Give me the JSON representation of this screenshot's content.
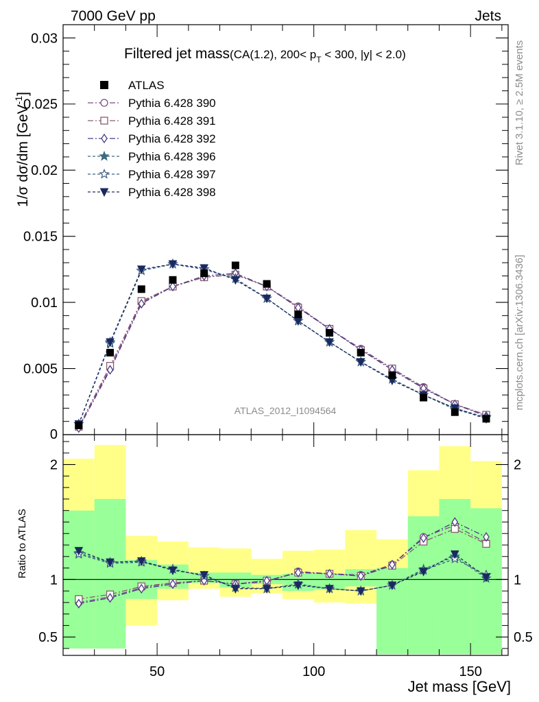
{
  "texts": {
    "header_left": "7000 GeV pp",
    "header_right": "Jets",
    "title_main": "Filtered jet mass",
    "title_sub_a": "(CA(1.2), 200< p",
    "title_sub_sub": "T",
    "title_sub_b": " < 300, |y| < 2.0)",
    "ylabel_top": "1/σ dσ/dm [GeV",
    "ylabel_top_sup": "-1",
    "ylabel_top_close": "]",
    "ylabel_bottom": "Ratio to ATLAS",
    "xlabel": "Jet mass [GeV]",
    "watermark": "ATLAS_2012_I1094564",
    "side_rivet": "Rivet 3.1.10, ≥ 2.5M events",
    "side_mcplots": "mcplots.cern.ch [arXiv:1306.3436]"
  },
  "colors": {
    "data": "#000000",
    "band_inner": "#99ff99",
    "band_outer": "#ffff88"
  },
  "chart_data": [
    {
      "type": "line",
      "panel": "main",
      "x": [
        25,
        35,
        45,
        55,
        65,
        75,
        85,
        95,
        105,
        115,
        125,
        135,
        145,
        155
      ],
      "xlim": [
        20,
        162
      ],
      "ylim": [
        0,
        0.031
      ],
      "xticks": [
        50,
        100,
        150
      ],
      "yticks": [
        0.005,
        0.01,
        0.015,
        0.02,
        0.025,
        0.03
      ],
      "ytick_labels": [
        "0.005",
        "0.01",
        "0.015",
        "0.02",
        "0.025",
        "0.03"
      ],
      "ytick_zero_label": "0",
      "data": {
        "name": "ATLAS",
        "values": [
          0.0007,
          0.0062,
          0.011,
          0.0117,
          0.0122,
          0.0128,
          0.0114,
          0.0091,
          0.0077,
          0.0062,
          0.0045,
          0.0028,
          0.0017,
          0.0012
        ]
      },
      "series": [
        {
          "name": "Pythia 6.428 390",
          "marker": "circle-open",
          "dash": "8,3,2,3",
          "color": "#7b4a8c",
          "values": [
            0.0006,
            0.005,
            0.01,
            0.0112,
            0.0119,
            0.0121,
            0.0112,
            0.0097,
            0.008,
            0.0065,
            0.005,
            0.0036,
            0.0023,
            0.0015
          ]
        },
        {
          "name": "Pythia 6.428 391",
          "marker": "square-open",
          "dash": "8,3,2,3",
          "color": "#8a5a6e",
          "values": [
            0.0006,
            0.0052,
            0.0101,
            0.0112,
            0.0119,
            0.0121,
            0.0112,
            0.0096,
            0.008,
            0.0064,
            0.005,
            0.0035,
            0.0023,
            0.0015
          ]
        },
        {
          "name": "Pythia 6.428 392",
          "marker": "diamond-open",
          "dash": "8,3,2,3",
          "color": "#4b3a86",
          "values": [
            0.0005,
            0.0049,
            0.0099,
            0.0112,
            0.012,
            0.0122,
            0.0112,
            0.0096,
            0.008,
            0.0064,
            0.0049,
            0.0035,
            0.0023,
            0.0014
          ]
        },
        {
          "name": "Pythia 6.428 396",
          "marker": "star-filled",
          "dash": "4,3",
          "color": "#3a6a80",
          "values": [
            0.0008,
            0.007,
            0.0124,
            0.0129,
            0.0125,
            0.0118,
            0.0103,
            0.0086,
            0.007,
            0.0055,
            0.0042,
            0.003,
            0.0019,
            0.0013
          ]
        },
        {
          "name": "Pythia 6.428 397",
          "marker": "star-open",
          "dash": "4,3",
          "color": "#3a5a80",
          "values": [
            0.0008,
            0.0069,
            0.0124,
            0.0129,
            0.0125,
            0.0118,
            0.0103,
            0.0086,
            0.007,
            0.0055,
            0.0042,
            0.003,
            0.002,
            0.0013
          ]
        },
        {
          "name": "Pythia 6.428 398",
          "marker": "triangle-down-filled",
          "dash": "4,3",
          "color": "#1a2a60",
          "values": [
            0.0008,
            0.007,
            0.0125,
            0.0129,
            0.0126,
            0.0117,
            0.0103,
            0.0086,
            0.007,
            0.0055,
            0.0041,
            0.003,
            0.002,
            0.0012
          ]
        }
      ]
    },
    {
      "type": "line",
      "panel": "ratio",
      "x": [
        25,
        35,
        45,
        55,
        65,
        75,
        85,
        95,
        105,
        115,
        125,
        135,
        145,
        155
      ],
      "xlim": [
        20,
        162
      ],
      "ylim": [
        0.34,
        2.26
      ],
      "yticks": [
        0.5,
        1,
        2
      ],
      "ytick_labels": [
        "0.5",
        "1",
        "2"
      ],
      "reference": 1,
      "bins": [
        [
          20,
          30
        ],
        [
          30,
          40
        ],
        [
          40,
          50
        ],
        [
          50,
          60
        ],
        [
          60,
          70
        ],
        [
          70,
          80
        ],
        [
          80,
          90
        ],
        [
          90,
          100
        ],
        [
          100,
          110
        ],
        [
          110,
          120
        ],
        [
          120,
          130
        ],
        [
          130,
          140
        ],
        [
          140,
          150
        ],
        [
          150,
          160
        ]
      ],
      "band_inner": [
        [
          0.4,
          1.6
        ],
        [
          0.4,
          1.7
        ],
        [
          0.83,
          1.17
        ],
        [
          0.92,
          1.13
        ],
        [
          0.97,
          1.06
        ],
        [
          0.93,
          1.06
        ],
        [
          0.96,
          1.04
        ],
        [
          0.9,
          1.05
        ],
        [
          0.91,
          1.05
        ],
        [
          0.94,
          1.09
        ],
        [
          0.35,
          1.1
        ],
        [
          0.35,
          1.55
        ],
        [
          0.35,
          1.7
        ],
        [
          0.35,
          1.62
        ]
      ],
      "band_outer": [
        [
          0.4,
          2.05
        ],
        [
          0.58,
          2.17
        ],
        [
          0.6,
          1.38
        ],
        [
          0.82,
          1.33
        ],
        [
          0.92,
          1.28
        ],
        [
          0.85,
          1.27
        ],
        [
          0.88,
          1.18
        ],
        [
          0.83,
          1.25
        ],
        [
          0.8,
          1.26
        ],
        [
          0.79,
          1.43
        ],
        [
          0.72,
          1.35
        ],
        [
          0.71,
          1.95
        ],
        [
          0.56,
          2.16
        ],
        [
          0.35,
          2.03
        ]
      ],
      "series": [
        {
          "name": "Pythia 6.428 390",
          "values": [
            0.8,
            0.85,
            0.93,
            0.97,
            0.99,
            0.96,
            0.98,
            1.07,
            1.05,
            1.04,
            1.13,
            1.37,
            1.47,
            1.32
          ]
        },
        {
          "name": "Pythia 6.428 391",
          "values": [
            0.83,
            0.87,
            0.94,
            0.97,
            0.99,
            0.96,
            0.99,
            1.06,
            1.05,
            1.03,
            1.12,
            1.33,
            1.44,
            1.31
          ]
        },
        {
          "name": "Pythia 6.428 392",
          "values": [
            0.79,
            0.84,
            0.92,
            0.96,
            0.99,
            0.96,
            0.99,
            1.06,
            1.05,
            1.03,
            1.13,
            1.36,
            1.5,
            1.37
          ]
        },
        {
          "name": "Pythia 6.428 396",
          "values": [
            1.23,
            1.15,
            1.16,
            1.09,
            1.03,
            0.93,
            0.92,
            0.96,
            0.92,
            0.9,
            0.95,
            1.09,
            1.2,
            1.01
          ]
        },
        {
          "name": "Pythia 6.428 397",
          "values": [
            1.22,
            1.14,
            1.15,
            1.09,
            1.03,
            0.93,
            0.92,
            0.96,
            0.92,
            0.9,
            0.95,
            1.08,
            1.18,
            1.04
          ]
        },
        {
          "name": "Pythia 6.428 398",
          "values": [
            1.25,
            1.15,
            1.16,
            1.08,
            1.04,
            0.92,
            0.92,
            0.95,
            0.92,
            0.9,
            0.95,
            1.07,
            1.22,
            1.02
          ]
        }
      ]
    }
  ]
}
